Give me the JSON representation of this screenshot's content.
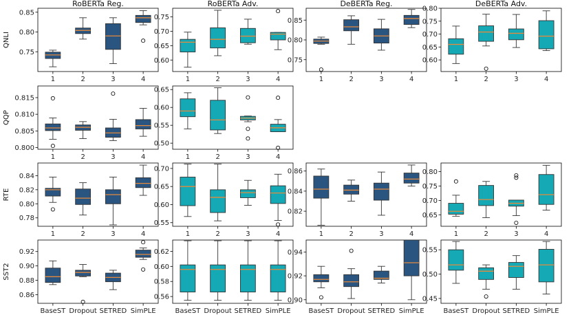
{
  "colors": {
    "regular_box": "#2a5580",
    "adv_box": "#14a9b5",
    "median": "#e58a3c",
    "edge": "#333333"
  },
  "chart_data": {
    "type": "boxplot",
    "columns": [
      "RoBERTa Reg.",
      "RoBERTa Adv.",
      "DeBERTa Reg.",
      "DeBERTa Adv."
    ],
    "rows": [
      "QNLI",
      "QQP",
      "RTE",
      "SST2"
    ],
    "x_numeric_labels": [
      "1",
      "2",
      "3",
      "4"
    ],
    "x_method_labels": [
      "BaseST",
      "Dropout",
      "SETRED",
      "SimPLE"
    ],
    "panels": [
      {
        "row": 0,
        "col": 0,
        "ylim": [
          0.7,
          0.86
        ],
        "yticks": [
          "0.75",
          "0.80",
          "0.85"
        ],
        "tick_values": [
          0.75,
          0.8,
          0.85
        ],
        "boxes": [
          {
            "whislo": 0.712,
            "q1": 0.733,
            "med": 0.742,
            "q3": 0.749,
            "whishi": 0.754,
            "fliers": []
          },
          {
            "whislo": 0.782,
            "q1": 0.796,
            "med": 0.804,
            "q3": 0.81,
            "whishi": 0.836,
            "fliers": []
          },
          {
            "whislo": 0.72,
            "q1": 0.756,
            "med": 0.79,
            "q3": 0.821,
            "whishi": 0.836,
            "fliers": []
          },
          {
            "whislo": 0.818,
            "q1": 0.824,
            "med": 0.836,
            "q3": 0.842,
            "whishi": 0.854,
            "fliers": [
              0.778
            ]
          }
        ]
      },
      {
        "row": 0,
        "col": 1,
        "ylim": [
          0.56,
          0.78
        ],
        "yticks": [
          "0.60",
          "0.65",
          "0.70",
          "0.75"
        ],
        "tick_values": [
          0.6,
          0.65,
          0.7,
          0.75
        ],
        "boxes": [
          {
            "whislo": 0.575,
            "q1": 0.628,
            "med": 0.662,
            "q3": 0.672,
            "whishi": 0.697,
            "fliers": []
          },
          {
            "whislo": 0.615,
            "q1": 0.642,
            "med": 0.672,
            "q3": 0.712,
            "whishi": 0.773,
            "fliers": []
          },
          {
            "whislo": 0.655,
            "q1": 0.66,
            "med": 0.683,
            "q3": 0.71,
            "whishi": 0.742,
            "fliers": []
          },
          {
            "whislo": 0.636,
            "q1": 0.67,
            "med": 0.69,
            "q3": 0.696,
            "whishi": 0.696,
            "fliers": [
              0.77
            ]
          }
        ]
      },
      {
        "row": 0,
        "col": 2,
        "ylim": [
          0.72,
          0.88
        ],
        "yticks": [
          "0.75",
          "0.80",
          "0.85"
        ],
        "tick_values": [
          0.75,
          0.8,
          0.85
        ],
        "boxes": [
          {
            "whislo": 0.789,
            "q1": 0.791,
            "med": 0.797,
            "q3": 0.802,
            "whishi": 0.807,
            "fliers": [
              0.725
            ]
          },
          {
            "whislo": 0.789,
            "q1": 0.823,
            "med": 0.833,
            "q3": 0.851,
            "whishi": 0.861,
            "fliers": []
          },
          {
            "whislo": 0.774,
            "q1": 0.792,
            "med": 0.81,
            "q3": 0.828,
            "whishi": 0.852,
            "fliers": []
          },
          {
            "whislo": 0.831,
            "q1": 0.839,
            "med": 0.854,
            "q3": 0.862,
            "whishi": 0.877,
            "fliers": []
          }
        ]
      },
      {
        "row": 0,
        "col": 3,
        "ylim": [
          0.555,
          0.8
        ],
        "yticks": [
          "0.60",
          "0.65",
          "0.70",
          "0.75",
          "0.80"
        ],
        "tick_values": [
          0.6,
          0.65,
          0.7,
          0.75,
          0.8
        ],
        "boxes": [
          {
            "whislo": 0.586,
            "q1": 0.622,
            "med": 0.66,
            "q3": 0.682,
            "whishi": 0.731,
            "fliers": []
          },
          {
            "whislo": 0.654,
            "q1": 0.672,
            "med": 0.708,
            "q3": 0.732,
            "whishi": 0.777,
            "fliers": [
              0.566
            ]
          },
          {
            "whislo": 0.648,
            "q1": 0.678,
            "med": 0.703,
            "q3": 0.72,
            "whishi": 0.776,
            "fliers": []
          },
          {
            "whislo": 0.636,
            "q1": 0.643,
            "med": 0.692,
            "q3": 0.752,
            "whishi": 0.79,
            "fliers": []
          }
        ]
      },
      {
        "row": 1,
        "col": 0,
        "ylim": [
          0.7995,
          0.8185
        ],
        "yticks": [
          "0.800",
          "0.805",
          "0.810",
          "0.815"
        ],
        "tick_values": [
          0.8,
          0.805,
          0.81,
          0.815
        ],
        "boxes": [
          {
            "whislo": 0.8025,
            "q1": 0.8051,
            "med": 0.8059,
            "q3": 0.8071,
            "whishi": 0.8089,
            "fliers": [
              0.8148,
              0.8005
            ]
          },
          {
            "whislo": 0.8027,
            "q1": 0.8052,
            "med": 0.8061,
            "q3": 0.8068,
            "whishi": 0.8078,
            "fliers": []
          },
          {
            "whislo": 0.8021,
            "q1": 0.8031,
            "med": 0.8044,
            "q3": 0.8059,
            "whishi": 0.8085,
            "fliers": [
              0.8162
            ]
          },
          {
            "whislo": 0.8034,
            "q1": 0.8056,
            "med": 0.8066,
            "q3": 0.8084,
            "whishi": 0.8118,
            "fliers": []
          }
        ]
      },
      {
        "row": 1,
        "col": 1,
        "ylim": [
          0.483,
          0.66
        ],
        "yticks": [
          "0.50",
          "0.55",
          "0.60",
          "0.65"
        ],
        "tick_values": [
          0.5,
          0.55,
          0.6,
          0.65
        ],
        "boxes": [
          {
            "whislo": 0.54,
            "q1": 0.574,
            "med": 0.59,
            "q3": 0.624,
            "whishi": 0.641,
            "fliers": []
          },
          {
            "whislo": 0.527,
            "q1": 0.537,
            "med": 0.565,
            "q3": 0.62,
            "whishi": 0.655,
            "fliers": []
          },
          {
            "whislo": 0.56,
            "q1": 0.565,
            "med": 0.57,
            "q3": 0.575,
            "whishi": 0.576,
            "fliers": [
              0.628,
              0.54,
              0.513
            ]
          },
          {
            "whislo": 0.532,
            "q1": 0.532,
            "med": 0.543,
            "q3": 0.553,
            "whishi": 0.566,
            "fliers": [
              0.627,
              0.487
            ]
          }
        ]
      },
      {
        "row": 2,
        "col": 0,
        "ylim": [
          0.768,
          0.858
        ],
        "yticks": [
          "0.78",
          "0.80",
          "0.82",
          "0.84"
        ],
        "tick_values": [
          0.78,
          0.8,
          0.82,
          0.84
        ],
        "boxes": [
          {
            "whislo": 0.802,
            "q1": 0.811,
            "med": 0.82,
            "q3": 0.822,
            "whishi": 0.838,
            "fliers": [
              0.792
            ]
          },
          {
            "whislo": 0.784,
            "q1": 0.799,
            "med": 0.808,
            "q3": 0.821,
            "whishi": 0.83,
            "fliers": []
          },
          {
            "whislo": 0.77,
            "q1": 0.8,
            "med": 0.813,
            "q3": 0.82,
            "whishi": 0.838,
            "fliers": []
          },
          {
            "whislo": 0.812,
            "q1": 0.823,
            "med": 0.829,
            "q3": 0.837,
            "whishi": 0.855,
            "fliers": []
          }
        ]
      },
      {
        "row": 2,
        "col": 1,
        "ylim": [
          0.54,
          0.715
        ],
        "yticks": [
          "0.55",
          "0.60",
          "0.65",
          "0.70"
        ],
        "tick_values": [
          0.55,
          0.6,
          0.65,
          0.7
        ],
        "boxes": [
          {
            "whislo": 0.567,
            "q1": 0.597,
            "med": 0.65,
            "q3": 0.676,
            "whishi": 0.712,
            "fliers": []
          },
          {
            "whislo": 0.555,
            "q1": 0.578,
            "med": 0.62,
            "q3": 0.641,
            "whishi": 0.712,
            "fliers": []
          },
          {
            "whislo": 0.598,
            "q1": 0.619,
            "med": 0.633,
            "q3": 0.641,
            "whishi": 0.667,
            "fliers": []
          },
          {
            "whislo": 0.556,
            "q1": 0.603,
            "med": 0.632,
            "q3": 0.652,
            "whishi": 0.684,
            "fliers": [
              0.545
            ]
          }
        ]
      },
      {
        "row": 2,
        "col": 2,
        "ylim": [
          0.805,
          0.868
        ],
        "yticks": [
          "0.82",
          "0.84",
          "0.86"
        ],
        "tick_values": [
          0.82,
          0.84,
          0.86
        ],
        "boxes": [
          {
            "whislo": 0.806,
            "q1": 0.833,
            "med": 0.842,
            "q3": 0.855,
            "whishi": 0.862,
            "fliers": []
          },
          {
            "whislo": 0.83,
            "q1": 0.837,
            "med": 0.841,
            "q3": 0.846,
            "whishi": 0.851,
            "fliers": []
          },
          {
            "whislo": 0.816,
            "q1": 0.831,
            "med": 0.842,
            "q3": 0.848,
            "whishi": 0.859,
            "fliers": []
          },
          {
            "whislo": 0.845,
            "q1": 0.848,
            "med": 0.852,
            "q3": 0.858,
            "whishi": 0.866,
            "fliers": []
          }
        ]
      },
      {
        "row": 2,
        "col": 3,
        "ylim": [
          0.61,
          0.83
        ],
        "yticks": [
          "0.65",
          "0.70",
          "0.75",
          "0.80"
        ],
        "tick_values": [
          0.65,
          0.7,
          0.75,
          0.8
        ],
        "boxes": [
          {
            "whislo": 0.645,
            "q1": 0.652,
            "med": 0.662,
            "q3": 0.69,
            "whishi": 0.718,
            "fliers": [
              0.766
            ]
          },
          {
            "whislo": 0.64,
            "q1": 0.682,
            "med": 0.703,
            "q3": 0.752,
            "whishi": 0.766,
            "fliers": []
          },
          {
            "whislo": 0.647,
            "q1": 0.68,
            "med": 0.69,
            "q3": 0.701,
            "whishi": 0.701,
            "fliers": [
              0.787,
              0.779,
              0.622
            ]
          },
          {
            "whislo": 0.666,
            "q1": 0.686,
            "med": 0.72,
            "q3": 0.79,
            "whishi": 0.822,
            "fliers": []
          }
        ]
      },
      {
        "row": 3,
        "col": 0,
        "ylim": [
          0.848,
          0.936
        ],
        "yticks": [
          "0.86",
          "0.88",
          "0.90",
          "0.92"
        ],
        "tick_values": [
          0.86,
          0.88,
          0.9,
          0.92
        ],
        "boxes": [
          {
            "whislo": 0.874,
            "q1": 0.877,
            "med": 0.885,
            "q3": 0.897,
            "whishi": 0.907,
            "fliers": []
          },
          {
            "whislo": 0.885,
            "q1": 0.886,
            "med": 0.891,
            "q3": 0.894,
            "whishi": 0.902,
            "fliers": [
              0.85
            ]
          },
          {
            "whislo": 0.867,
            "q1": 0.878,
            "med": 0.884,
            "q3": 0.89,
            "whishi": 0.894,
            "fliers": []
          },
          {
            "whislo": 0.909,
            "q1": 0.912,
            "med": 0.916,
            "q3": 0.922,
            "whishi": 0.925,
            "fliers": [
              0.933,
              0.895
            ]
          }
        ]
      },
      {
        "row": 3,
        "col": 1,
        "ylim": [
          0.551,
          0.635
        ],
        "yticks": [
          "0.56",
          "0.58",
          "0.60",
          "0.62"
        ],
        "tick_values": [
          0.56,
          0.58,
          0.6,
          0.62
        ],
        "boxes": [
          {
            "whislo": 0.555,
            "q1": 0.566,
            "med": 0.596,
            "q3": 0.602,
            "whishi": 0.634,
            "fliers": []
          },
          {
            "whislo": 0.555,
            "q1": 0.566,
            "med": 0.596,
            "q3": 0.602,
            "whishi": 0.634,
            "fliers": []
          },
          {
            "whislo": 0.555,
            "q1": 0.566,
            "med": 0.596,
            "q3": 0.602,
            "whishi": 0.634,
            "fliers": []
          },
          {
            "whislo": 0.555,
            "q1": 0.566,
            "med": 0.596,
            "q3": 0.602,
            "whishi": 0.634,
            "fliers": []
          }
        ]
      },
      {
        "row": 3,
        "col": 2,
        "ylim": [
          0.897,
          0.95
        ],
        "yticks": [
          "0.90",
          "0.92",
          "0.94"
        ],
        "tick_values": [
          0.9,
          0.92,
          0.94
        ],
        "boxes": [
          {
            "whislo": 0.91,
            "q1": 0.915,
            "med": 0.917,
            "q3": 0.921,
            "whishi": 0.928,
            "fliers": [
              0.902
            ]
          },
          {
            "whislo": 0.901,
            "q1": 0.911,
            "med": 0.915,
            "q3": 0.921,
            "whishi": 0.926,
            "fliers": [
              0.941
            ]
          },
          {
            "whislo": 0.914,
            "q1": 0.917,
            "med": 0.918,
            "q3": 0.924,
            "whishi": 0.928,
            "fliers": []
          },
          {
            "whislo": 0.9,
            "q1": 0.92,
            "med": 0.931,
            "q3": 0.95,
            "whishi": 0.95,
            "fliers": []
          }
        ]
      },
      {
        "row": 3,
        "col": 3,
        "ylim": [
          0.44,
          0.57
        ],
        "yticks": [
          "0.45",
          "0.50",
          "0.55"
        ],
        "tick_values": [
          0.45,
          0.5,
          0.55
        ],
        "boxes": [
          {
            "whislo": 0.481,
            "q1": 0.508,
            "med": 0.519,
            "q3": 0.55,
            "whishi": 0.567,
            "fliers": []
          },
          {
            "whislo": 0.469,
            "q1": 0.489,
            "med": 0.506,
            "q3": 0.513,
            "whishi": 0.519,
            "fliers": [
              0.454
            ]
          },
          {
            "whislo": 0.469,
            "q1": 0.493,
            "med": 0.516,
            "q3": 0.524,
            "whishi": 0.538,
            "fliers": []
          },
          {
            "whislo": 0.459,
            "q1": 0.484,
            "med": 0.519,
            "q3": 0.551,
            "whishi": 0.567,
            "fliers": []
          }
        ]
      }
    ]
  }
}
